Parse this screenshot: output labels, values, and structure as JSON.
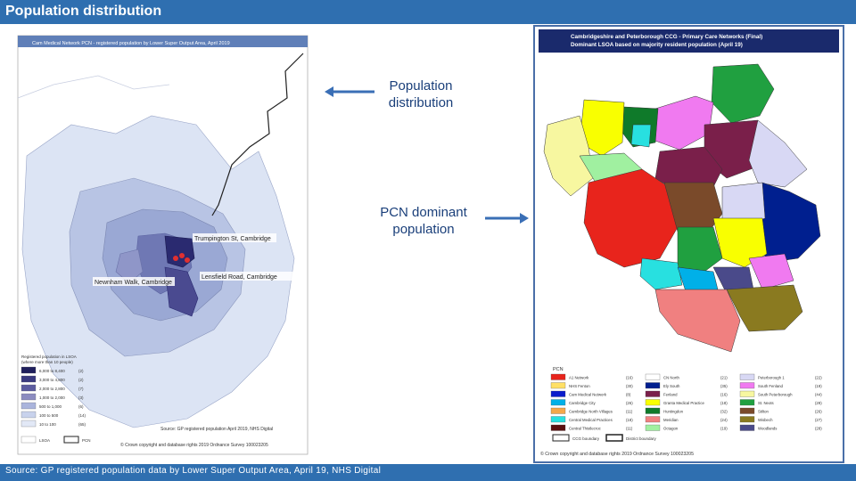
{
  "header": {
    "title": "Population distribution"
  },
  "footer": {
    "source": "Source: GP registered population data by Lower Super Output Area, April 19, NHS Digital"
  },
  "annotations": {
    "population": [
      "Population",
      "distribution"
    ],
    "pcn": [
      "PCN dominant",
      "population"
    ]
  },
  "left_map": {
    "title": "Cam Medical Network PCN - registered population by Lower Super Output Area, April 2019",
    "places": [
      "Trumpington St, Cambridge",
      "Lensfield Road, Cambridge",
      "Newnham Walk, Cambridge"
    ],
    "legend_title": [
      "Registered population in LSOA",
      "(where more than 10 people)"
    ],
    "legend_items": [
      {
        "label": "6,000 to 8,400",
        "count": "(2)",
        "color": "#1f1f5c"
      },
      {
        "label": "3,000 to 4,800",
        "count": "(2)",
        "color": "#3a3a80"
      },
      {
        "label": "2,000 to 2,800",
        "count": "(7)",
        "color": "#5c5ca0"
      },
      {
        "label": "1,000 to 2,000",
        "count": "(3)",
        "color": "#8c8cc0"
      },
      {
        "label": "500 to 1,000",
        "count": "(6)",
        "color": "#aab4dc"
      },
      {
        "label": "100 to 500",
        "count": "(14)",
        "color": "#c8d2ec"
      },
      {
        "label": "10 to 100",
        "count": "(65)",
        "color": "#e2e8f6"
      }
    ],
    "lsoa_label": "LSOA",
    "pcn_label": "PCN",
    "source_lines": [
      "Source: GP registered population April 2019, NHS Digital",
      "© Crown copyright and database rights 2019 Ordnance Survey 100023205"
    ]
  },
  "right_map": {
    "title_lines": [
      "Cambridgeshire and Peterborough CCG - Primary Care Networks (Final)",
      "Dominant LSOA based on majority resident population (April 19)"
    ],
    "legend_title": "PCN",
    "legend_items": [
      {
        "label": "A1 Network",
        "count": "(16)",
        "color": "#e8241c"
      },
      {
        "label": "CN North",
        "count": "(21)",
        "color": "#ffffff"
      },
      {
        "label": "Peterborough 1",
        "count": "(22)",
        "color": "#d8d8f4"
      },
      {
        "label": "NHS Fenton",
        "count": "(30)",
        "color": "#ffe066"
      },
      {
        "label": "Ely South",
        "count": "(35)",
        "color": "#001f8f"
      },
      {
        "label": "South Fenland",
        "count": "(19)",
        "color": "#f07af0"
      },
      {
        "label": "Cam Medical Network",
        "count": "(8)",
        "color": "#0a1ccc"
      },
      {
        "label": "Fenland",
        "count": "(16)",
        "color": "#7a1f4a"
      },
      {
        "label": "South Peterborough",
        "count": "(44)",
        "color": "#f7f7a0"
      },
      {
        "label": "Cambridge City",
        "count": "(26)",
        "color": "#00b0e8"
      },
      {
        "label": "Granta Medical Practice",
        "count": "(18)",
        "color": "#f9ff00"
      },
      {
        "label": "St. Neots",
        "count": "(29)",
        "color": "#20a040"
      },
      {
        "label": "Cambridge North Villages",
        "count": "(11)",
        "color": "#f4a84a"
      },
      {
        "label": "Huntingdon",
        "count": "(32)",
        "color": "#0f7a2a"
      },
      {
        "label": "Stilton",
        "count": "(26)",
        "color": "#7a4a2a"
      },
      {
        "label": "Central Medical Practices",
        "count": "(18)",
        "color": "#28e0e0"
      },
      {
        "label": "Meridian",
        "count": "(24)",
        "color": "#f08080"
      },
      {
        "label": "Wisbech",
        "count": "(27)",
        "color": "#8a7a20"
      },
      {
        "label": "Central Thistlecroc",
        "count": "(11)",
        "color": "#5a0f0f"
      },
      {
        "label": "Octagon",
        "count": "(19)",
        "color": "#a0f0a0"
      },
      {
        "label": "Woodlands",
        "count": "(28)",
        "color": "#4a4a8a"
      }
    ],
    "boundary_labels": [
      "CCG boundary",
      "District boundary"
    ],
    "copyright": "© Crown copyright and database rights 2019 Ordnance Survey 100023205"
  }
}
